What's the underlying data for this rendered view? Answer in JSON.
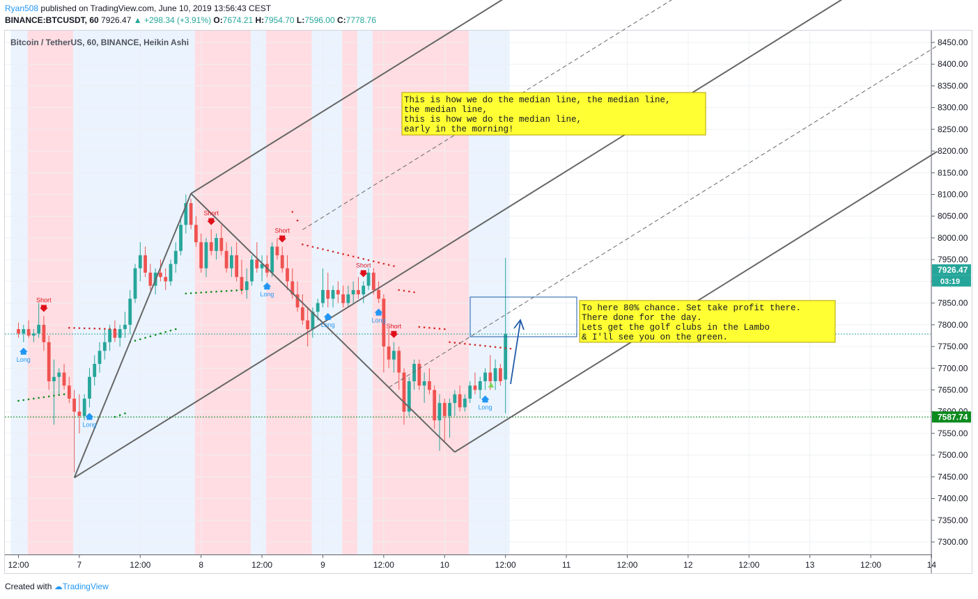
{
  "header": {
    "author": "Ryan508",
    "published": "published on TradingView.com, June 10, 2019 13:56:43 CEST",
    "symbol": "BINANCE:BTCUSDT, 60",
    "last": "7926.47",
    "change": "+298.34 (+3.91%)",
    "open_label": "O:",
    "open": "7674.21",
    "high_label": "H:",
    "high": "7954.70",
    "low_label": "L:",
    "low": "7596.00",
    "close_label": "C:",
    "close": "7778.76"
  },
  "footer": {
    "created_with": "Created with",
    "brand": "TradingView"
  },
  "colors": {
    "up": "#26a69a",
    "down": "#ef5350",
    "long": "#2196f3",
    "short": "#e0101a",
    "bg_short": "#ffdde2",
    "bg_long": "#eaf3fe",
    "fork": "#666666",
    "note": "#ffff33"
  },
  "chart_data": {
    "type": "candlestick",
    "title": "Bitcoin / TetherUS, 60, BINANCE, Heikin Ashi",
    "ylim": [
      7270,
      8470
    ],
    "y_ticks": [
      7300,
      7350,
      7400,
      7450,
      7500,
      7550,
      7600,
      7650,
      7700,
      7750,
      7800,
      7850,
      7900,
      7950,
      8000,
      8050,
      8100,
      8150,
      8200,
      8250,
      8300,
      8350,
      8400,
      8450
    ],
    "x_ticks": [
      {
        "i": 0,
        "label": "12:00"
      },
      {
        "i": 12,
        "label": "7"
      },
      {
        "i": 24,
        "label": "12:00"
      },
      {
        "i": 36,
        "label": "8"
      },
      {
        "i": 48,
        "label": "12:00"
      },
      {
        "i": 60,
        "label": "9"
      },
      {
        "i": 72,
        "label": "12:00"
      },
      {
        "i": 84,
        "label": "10"
      },
      {
        "i": 96,
        "label": "12:00"
      },
      {
        "i": 108,
        "label": "11"
      },
      {
        "i": 120,
        "label": "12:00"
      },
      {
        "i": 132,
        "label": "12"
      },
      {
        "i": 144,
        "label": "12:00"
      },
      {
        "i": 156,
        "label": "13"
      },
      {
        "i": 168,
        "label": "12:00"
      },
      {
        "i": 180,
        "label": "14"
      }
    ],
    "price_labels": [
      {
        "value": 7926.47,
        "text": "7926.47",
        "color": "#26a69a"
      },
      {
        "value": 7587.74,
        "text": "7587.74",
        "color": "#0b8a1d"
      }
    ],
    "countdown": "03:19",
    "h_lines": [
      {
        "value": 7778.76,
        "color": "#26a69a"
      },
      {
        "value": 7587.74,
        "color": "#0b8a1d"
      }
    ],
    "bg_bands": [
      {
        "from": -1.5,
        "to": 1.8,
        "kind": "long"
      },
      {
        "from": 1.8,
        "to": 10.8,
        "kind": "short"
      },
      {
        "from": 10.8,
        "to": 34.8,
        "kind": "long"
      },
      {
        "from": 34.8,
        "to": 45.8,
        "kind": "short"
      },
      {
        "from": 45.8,
        "to": 48.8,
        "kind": "long"
      },
      {
        "from": 48.8,
        "to": 57.8,
        "kind": "short"
      },
      {
        "from": 57.8,
        "to": 63.8,
        "kind": "long"
      },
      {
        "from": 63.8,
        "to": 66.8,
        "kind": "short"
      },
      {
        "from": 66.8,
        "to": 69.8,
        "kind": "long"
      },
      {
        "from": 69.8,
        "to": 88.8,
        "kind": "short"
      },
      {
        "from": 88.8,
        "to": 96.8,
        "kind": "long"
      }
    ],
    "candles": [
      [
        7790,
        7805,
        7770,
        7780
      ],
      [
        7780,
        7800,
        7760,
        7790
      ],
      [
        7790,
        7810,
        7770,
        7775
      ],
      [
        7775,
        7790,
        7760,
        7780
      ],
      [
        7780,
        7850,
        7770,
        7800
      ],
      [
        7800,
        7820,
        7740,
        7760
      ],
      [
        7760,
        7775,
        7650,
        7670
      ],
      [
        7670,
        7720,
        7570,
        7680
      ],
      [
        7680,
        7700,
        7640,
        7690
      ],
      [
        7690,
        7710,
        7650,
        7660
      ],
      [
        7660,
        7680,
        7620,
        7630
      ],
      [
        7630,
        7650,
        7460,
        7600
      ],
      [
        7600,
        7640,
        7550,
        7590
      ],
      [
        7590,
        7640,
        7580,
        7630
      ],
      [
        7630,
        7700,
        7610,
        7680
      ],
      [
        7680,
        7730,
        7660,
        7710
      ],
      [
        7710,
        7760,
        7690,
        7740
      ],
      [
        7740,
        7790,
        7720,
        7760
      ],
      [
        7760,
        7800,
        7740,
        7790
      ],
      [
        7790,
        7810,
        7760,
        7770
      ],
      [
        7770,
        7800,
        7750,
        7790
      ],
      [
        7790,
        7830,
        7770,
        7800
      ],
      [
        7800,
        7880,
        7780,
        7860
      ],
      [
        7860,
        7940,
        7850,
        7930
      ],
      [
        7930,
        7990,
        7900,
        7960
      ],
      [
        7960,
        7980,
        7910,
        7920
      ],
      [
        7920,
        7940,
        7880,
        7890
      ],
      [
        7890,
        7930,
        7870,
        7920
      ],
      [
        7920,
        7950,
        7900,
        7910
      ],
      [
        7910,
        7930,
        7880,
        7900
      ],
      [
        7900,
        7950,
        7890,
        7940
      ],
      [
        7940,
        7990,
        7920,
        7970
      ],
      [
        7970,
        8050,
        7960,
        8030
      ],
      [
        8030,
        8100,
        8010,
        8080
      ],
      [
        8080,
        8090,
        8020,
        8030
      ],
      [
        8030,
        8050,
        7980,
        7990
      ],
      [
        7990,
        8010,
        7920,
        7930
      ],
      [
        7930,
        8000,
        7910,
        7990
      ],
      [
        7990,
        8020,
        7960,
        7970
      ],
      [
        7970,
        8010,
        7950,
        8000
      ],
      [
        8000,
        8030,
        7960,
        7970
      ],
      [
        7970,
        7990,
        7920,
        7930
      ],
      [
        7930,
        7980,
        7910,
        7960
      ],
      [
        7960,
        7990,
        7900,
        7910
      ],
      [
        7910,
        7950,
        7870,
        7880
      ],
      [
        7880,
        7930,
        7860,
        7900
      ],
      [
        7900,
        7960,
        7890,
        7950
      ],
      [
        7950,
        7990,
        7920,
        7930
      ],
      [
        7930,
        7960,
        7900,
        7940
      ],
      [
        7940,
        7960,
        7910,
        7920
      ],
      [
        7920,
        7990,
        7910,
        7980
      ],
      [
        7980,
        8000,
        7950,
        7960
      ],
      [
        7960,
        7980,
        7920,
        7930
      ],
      [
        7930,
        7960,
        7880,
        7900
      ],
      [
        7900,
        7930,
        7860,
        7870
      ],
      [
        7870,
        7900,
        7830,
        7840
      ],
      [
        7840,
        7870,
        7800,
        7810
      ],
      [
        7810,
        7840,
        7750,
        7790
      ],
      [
        7790,
        7840,
        7770,
        7830
      ],
      [
        7830,
        7860,
        7810,
        7850
      ],
      [
        7850,
        7930,
        7840,
        7880
      ],
      [
        7880,
        7920,
        7840,
        7860
      ],
      [
        7860,
        7890,
        7840,
        7880
      ],
      [
        7880,
        7900,
        7850,
        7870
      ],
      [
        7870,
        7890,
        7840,
        7850
      ],
      [
        7850,
        7890,
        7840,
        7870
      ],
      [
        7870,
        7900,
        7850,
        7880
      ],
      [
        7880,
        7910,
        7860,
        7870
      ],
      [
        7870,
        7900,
        7850,
        7890
      ],
      [
        7890,
        7930,
        7880,
        7920
      ],
      [
        7920,
        7930,
        7870,
        7880
      ],
      [
        7880,
        7900,
        7850,
        7860
      ],
      [
        7860,
        7870,
        7690,
        7750
      ],
      [
        7750,
        7790,
        7700,
        7720
      ],
      [
        7720,
        7760,
        7690,
        7740
      ],
      [
        7740,
        7750,
        7650,
        7690
      ],
      [
        7690,
        7700,
        7570,
        7600
      ],
      [
        7600,
        7680,
        7590,
        7670
      ],
      [
        7670,
        7720,
        7650,
        7710
      ],
      [
        7710,
        7720,
        7650,
        7660
      ],
      [
        7660,
        7690,
        7620,
        7670
      ],
      [
        7670,
        7700,
        7640,
        7650
      ],
      [
        7650,
        7660,
        7560,
        7580
      ],
      [
        7580,
        7640,
        7510,
        7620
      ],
      [
        7620,
        7630,
        7530,
        7590
      ],
      [
        7590,
        7630,
        7540,
        7620
      ],
      [
        7620,
        7650,
        7590,
        7640
      ],
      [
        7640,
        7660,
        7600,
        7610
      ],
      [
        7610,
        7640,
        7600,
        7630
      ],
      [
        7630,
        7670,
        7620,
        7660
      ],
      [
        7660,
        7690,
        7640,
        7650
      ],
      [
        7650,
        7680,
        7630,
        7670
      ],
      [
        7670,
        7700,
        7650,
        7690
      ],
      [
        7690,
        7730,
        7650,
        7670
      ],
      [
        7670,
        7720,
        7650,
        7700
      ],
      [
        7700,
        7710,
        7660,
        7670
      ],
      [
        7674,
        7954,
        7596,
        7779
      ]
    ],
    "dots": [
      {
        "from": 0,
        "to": 9,
        "y0": 7625,
        "y1": 7640,
        "color": "#0b8a1d"
      },
      {
        "from": 10,
        "to": 19,
        "y0": 7793,
        "y1": 7790,
        "color": "#d42a2a"
      },
      {
        "from": 19,
        "to": 21,
        "y0": 7588,
        "y1": 7596,
        "color": "#0b8a1d"
      },
      {
        "from": 22,
        "to": 31,
        "y0": 7760,
        "y1": 7790,
        "color": "#0b8a1d"
      },
      {
        "from": 33,
        "to": 44,
        "y0": 7872,
        "y1": 7880,
        "color": "#0b8a1d"
      },
      {
        "from": 54,
        "to": 55,
        "y0": 8060,
        "y1": 8040,
        "color": "#d42a2a"
      },
      {
        "from": 56,
        "to": 74,
        "y0": 7985,
        "y1": 7935,
        "color": "#d42a2a"
      },
      {
        "from": 75,
        "to": 78,
        "y0": 7880,
        "y1": 7875,
        "color": "#d42a2a"
      },
      {
        "from": 79,
        "to": 84,
        "y0": 7795,
        "y1": 7790,
        "color": "#d42a2a"
      },
      {
        "from": 85,
        "to": 97,
        "y0": 7760,
        "y1": 7745,
        "color": "#d42a2a"
      }
    ],
    "signals": [
      {
        "i": 5,
        "type": "short",
        "label": "Short"
      },
      {
        "i": 1,
        "type": "long",
        "label": "Long"
      },
      {
        "i": 14,
        "type": "long",
        "label": "Long"
      },
      {
        "i": 38,
        "type": "short",
        "label": "Short"
      },
      {
        "i": 52,
        "type": "short",
        "label": "Short"
      },
      {
        "i": 49,
        "type": "long",
        "label": "Long"
      },
      {
        "i": 61,
        "type": "long",
        "label": "Long"
      },
      {
        "i": 68,
        "type": "short",
        "label": "Short"
      },
      {
        "i": 71,
        "type": "long",
        "label": "Long"
      },
      {
        "i": 74,
        "type": "short",
        "label": "Short"
      },
      {
        "i": 92,
        "type": "long",
        "label": "Long"
      }
    ],
    "pitchfork": {
      "pivots": [
        [
          11,
          7448
        ],
        [
          34,
          8102
        ],
        [
          86,
          7507
        ]
      ],
      "median_start": [
        22.5,
        7775
      ],
      "median_handle": [
        [
          34,
          8102
        ],
        [
          86,
          7507
        ]
      ],
      "end_i": 180
    },
    "annotations": [
      {
        "lines": [
          "This is how we do the median line, the median line,",
          "the median line,",
          "this is how we do the median line,",
          "early in the morning!"
        ]
      },
      {
        "lines": [
          "To here 80% chance.  Set take profit there.",
          "There done for the day.",
          "Lets get the golf clubs in the Lambo",
          "& I'll see you on the green."
        ]
      }
    ]
  }
}
